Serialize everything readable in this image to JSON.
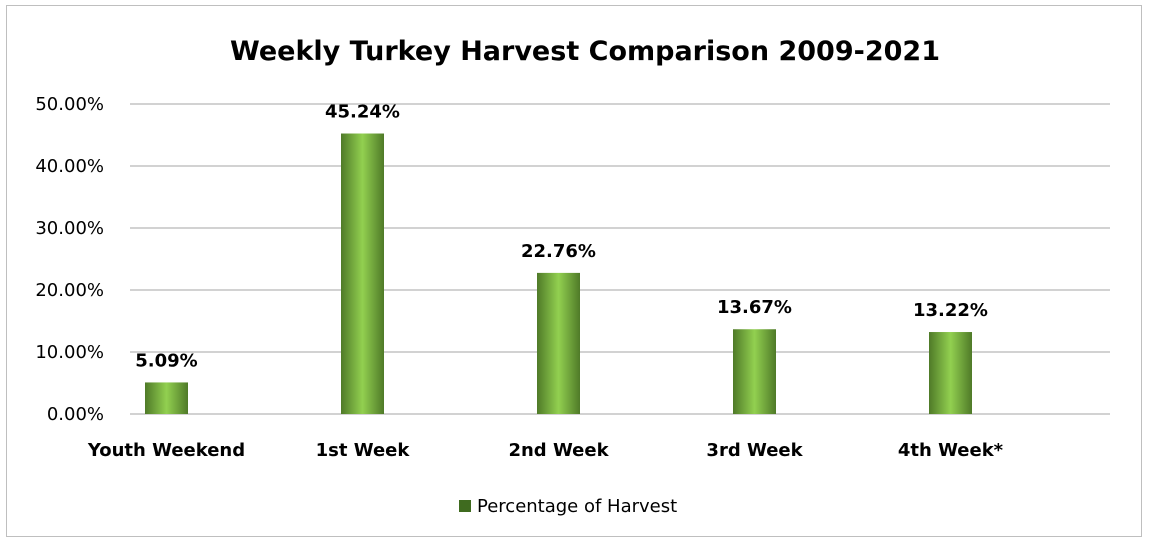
{
  "chart_data": {
    "type": "bar",
    "title": "Weekly Turkey Harvest Comparison 2009-2021",
    "categories": [
      "Youth Weekend",
      "1st Week",
      "2nd Week",
      "3rd Week",
      "4th Week*"
    ],
    "series": [
      {
        "name": "Percentage of Harvest",
        "values": [
          5.09,
          45.24,
          22.76,
          13.67,
          13.22
        ],
        "data_labels": [
          "5.09%",
          "45.24%",
          "22.76%",
          "13.67%",
          "13.22%"
        ]
      }
    ],
    "ylim": [
      0,
      50
    ],
    "yticks": [
      0,
      10,
      20,
      30,
      40,
      50
    ],
    "ytick_labels": [
      "0.00%",
      "10.00%",
      "20.00%",
      "30.00%",
      "40.00%",
      "50.00%"
    ],
    "xlabel": "",
    "ylabel": "",
    "grid": true,
    "legend_position": "bottom",
    "colors": {
      "bar_light": "#92d050",
      "bar_dark": "#4f7a28",
      "legend_swatch": "#3f6b1f",
      "gridline": "#a6a6a6"
    }
  }
}
